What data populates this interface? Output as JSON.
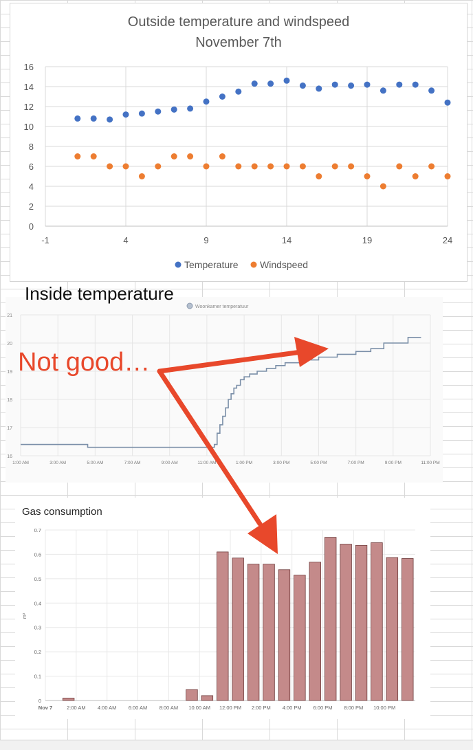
{
  "chart_data": [
    {
      "type": "scatter",
      "title": "Outside temperature and windspeed",
      "subtitle": "November 7th",
      "xlabel": "",
      "ylabel": "",
      "xlim": [
        -1,
        24
      ],
      "ylim": [
        0,
        16
      ],
      "x_ticks": [
        "-1",
        "4",
        "9",
        "14",
        "19",
        "24"
      ],
      "y_ticks": [
        "0",
        "2",
        "4",
        "6",
        "8",
        "10",
        "12",
        "14",
        "16"
      ],
      "grid": true,
      "legend": "bottom",
      "series": [
        {
          "name": "Temperature",
          "color": "#4472c4",
          "x": [
            1,
            2,
            3,
            4,
            5,
            6,
            7,
            8,
            9,
            10,
            11,
            12,
            13,
            14,
            15,
            16,
            17,
            18,
            19,
            20,
            21,
            22,
            23,
            24
          ],
          "y": [
            10.8,
            10.8,
            10.7,
            11.2,
            11.3,
            11.5,
            11.7,
            11.8,
            12.5,
            13.0,
            13.5,
            14.3,
            14.3,
            14.6,
            14.1,
            13.8,
            14.2,
            14.1,
            14.2,
            13.6,
            14.2,
            14.2,
            13.6,
            12.4
          ]
        },
        {
          "name": "Windspeed",
          "color": "#ed7d31",
          "x": [
            1,
            2,
            3,
            4,
            5,
            6,
            7,
            8,
            9,
            10,
            11,
            12,
            13,
            14,
            15,
            16,
            17,
            18,
            19,
            20,
            21,
            22,
            23,
            24
          ],
          "y": [
            7,
            7,
            6,
            6,
            5,
            6,
            7,
            7,
            6,
            7,
            6,
            6,
            6,
            6,
            6,
            5,
            6,
            6,
            5,
            4,
            6,
            5,
            6,
            5
          ]
        }
      ]
    },
    {
      "type": "line",
      "title": "Inside temperature",
      "legend_label": "Woonkamer temperatuur",
      "xlim": [
        1,
        23
      ],
      "ylim": [
        16,
        21
      ],
      "x_ticks": [
        "1:00 AM",
        "3:00 AM",
        "5:00 AM",
        "7:00 AM",
        "9:00 AM",
        "11:00 AM",
        "1:00 PM",
        "3:00 PM",
        "5:00 PM",
        "7:00 PM",
        "9:00 PM",
        "11:00 PM"
      ],
      "y_ticks": [
        "16",
        "17",
        "18",
        "19",
        "20",
        "21"
      ],
      "grid": true,
      "series": [
        {
          "name": "Woonkamer temperatuur",
          "color": "#7b8fa8",
          "x": [
            1,
            4.6,
            11.4,
            11.55,
            11.7,
            11.85,
            12.0,
            12.15,
            12.3,
            12.45,
            12.6,
            12.8,
            13.0,
            13.3,
            13.7,
            14.2,
            14.7,
            15.2,
            16.0,
            17.0,
            18.0,
            19.0,
            19.8,
            20.5,
            21.8,
            22.5
          ],
          "y": [
            16.4,
            16.3,
            16.4,
            16.8,
            17.1,
            17.4,
            17.7,
            18.0,
            18.2,
            18.4,
            18.5,
            18.7,
            18.8,
            18.9,
            19.0,
            19.1,
            19.2,
            19.3,
            19.4,
            19.5,
            19.6,
            19.7,
            19.8,
            20.0,
            20.2,
            20.2
          ]
        }
      ]
    },
    {
      "type": "bar",
      "title": "Gas consumption",
      "ylabel": "m³",
      "ylim": [
        0,
        0.7
      ],
      "y_ticks": [
        "0",
        "0.1",
        "0.2",
        "0.3",
        "0.4",
        "0.5",
        "0.6",
        "0.7"
      ],
      "x_ticks": [
        "Nov 7",
        "2:00 AM",
        "4:00 AM",
        "6:00 AM",
        "8:00 AM",
        "10:00 AM",
        "12:00 PM",
        "2:00 PM",
        "4:00 PM",
        "6:00 PM",
        "8:00 PM",
        "10:00 PM"
      ],
      "grid": true,
      "color": "#c48a8a",
      "categories": [
        "0:00",
        "1:00",
        "2:00",
        "3:00",
        "4:00",
        "5:00",
        "6:00",
        "7:00",
        "8:00",
        "9:00",
        "10:00",
        "11:00",
        "12:00",
        "13:00",
        "14:00",
        "15:00",
        "16:00",
        "17:00",
        "18:00",
        "19:00",
        "20:00",
        "21:00",
        "22:00",
        "23:00"
      ],
      "values": [
        0,
        0.01,
        0,
        0,
        0,
        0,
        0,
        0,
        0,
        0.045,
        0.02,
        0.61,
        0.585,
        0.56,
        0.56,
        0.537,
        0.515,
        0.568,
        0.67,
        0.642,
        0.637,
        0.648,
        0.587,
        0.583
      ]
    }
  ],
  "annotation": {
    "heading": "Inside temperature",
    "note": "Not good…",
    "arrow_color": "#e8482b"
  }
}
